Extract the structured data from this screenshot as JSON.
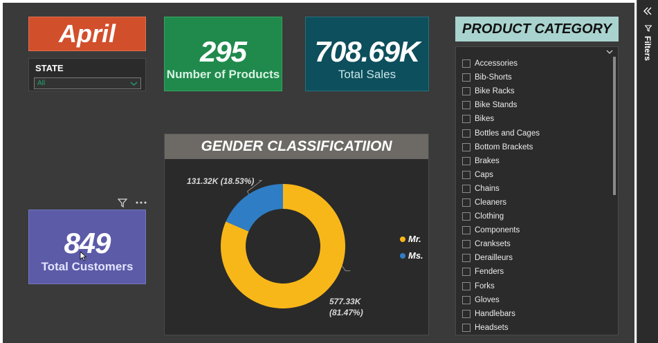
{
  "month": "April",
  "state_slicer": {
    "title": "STATE",
    "selected": "All"
  },
  "kpis": {
    "products": {
      "value": "295",
      "label": "Number of Products"
    },
    "sales": {
      "value": "708.69K",
      "label": "Total Sales"
    },
    "customers": {
      "value": "849",
      "label": "Total Customers"
    }
  },
  "gender_chart": {
    "title": "GENDER CLASSIFICATIION",
    "labels": {
      "ms": "131.32K (18.53%)",
      "mr_line1": "577.33K",
      "mr_line2": "(81.47%)"
    }
  },
  "chart_data": {
    "type": "pie",
    "title": "GENDER CLASSIFICATIION",
    "categories": [
      "Mr.",
      "Ms."
    ],
    "values": [
      577.33,
      131.32
    ],
    "percent": [
      81.47,
      18.53
    ],
    "colors": [
      "#f8b719",
      "#2f7dc5"
    ],
    "legend": "right"
  },
  "product_category": {
    "title": "PRODUCT CATEGORY",
    "items": [
      "Accessories",
      "Bib-Shorts",
      "Bike Racks",
      "Bike Stands",
      "Bikes",
      "Bottles and Cages",
      "Bottom Brackets",
      "Brakes",
      "Caps",
      "Chains",
      "Cleaners",
      "Clothing",
      "Components",
      "Cranksets",
      "Derailleurs",
      "Fenders",
      "Forks",
      "Gloves",
      "Handlebars",
      "Headsets"
    ]
  },
  "filters_pane": {
    "label": "Filters"
  }
}
